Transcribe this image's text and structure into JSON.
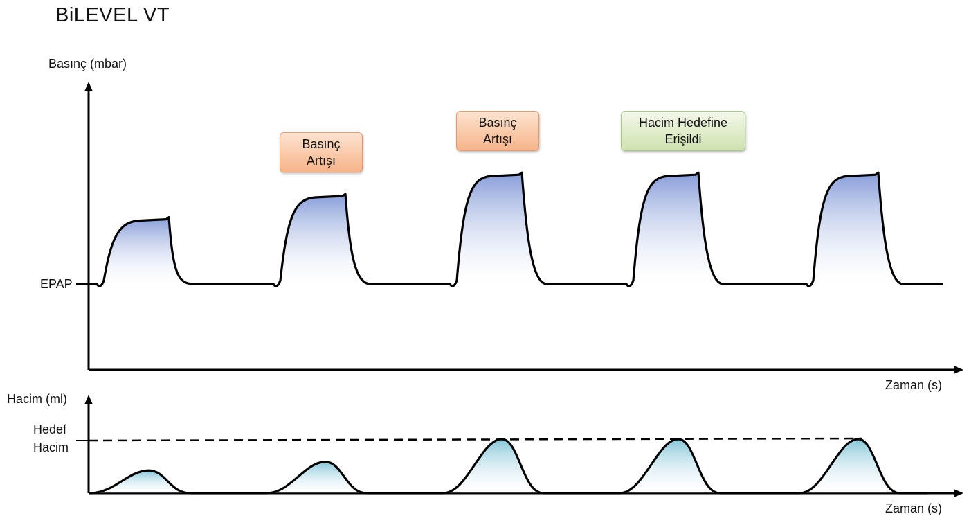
{
  "title": "BiLEVEL VT",
  "pressure_chart": {
    "ylabel": "Basınç (mbar)",
    "xlabel": "Zaman (s)",
    "epap_label": "EPAP"
  },
  "volume_chart": {
    "ylabel": "Hacim (ml)",
    "xlabel": "Zaman (s)",
    "target_label_line1": "Hedef",
    "target_label_line2": "Hacim"
  },
  "annotations": [
    {
      "line1": "Basınç",
      "line2": "Artışı",
      "color": "orange"
    },
    {
      "line1": "Basınç",
      "line2": "Artışı",
      "color": "orange"
    },
    {
      "line1": "Hacim Hedefine",
      "line2": "Erişildi",
      "color": "green"
    }
  ],
  "chart_data": [
    {
      "type": "line",
      "title": "BiLEVEL VT",
      "ylabel": "Basınç (mbar)",
      "xlabel": "Zaman (s)",
      "baseline_label": "EPAP",
      "breaths": [
        1,
        2,
        3,
        4,
        5
      ],
      "relative_peak_pressure": [
        0.33,
        0.45,
        0.56,
        0.56,
        0.56
      ]
    },
    {
      "type": "area",
      "ylabel": "Hacim (ml)",
      "xlabel": "Zaman (s)",
      "reference_line": "Hedef Hacim",
      "breaths": [
        1,
        2,
        3,
        4,
        5
      ],
      "relative_volume": [
        0.42,
        0.58,
        1.0,
        1.0,
        1.0
      ]
    }
  ],
  "colors": {
    "pressure_fill": "#7f97d6",
    "volume_fill": "#7fc3d6",
    "orange_box": "#f7b48a",
    "green_box": "#cfe2b0",
    "line": "#000000"
  }
}
